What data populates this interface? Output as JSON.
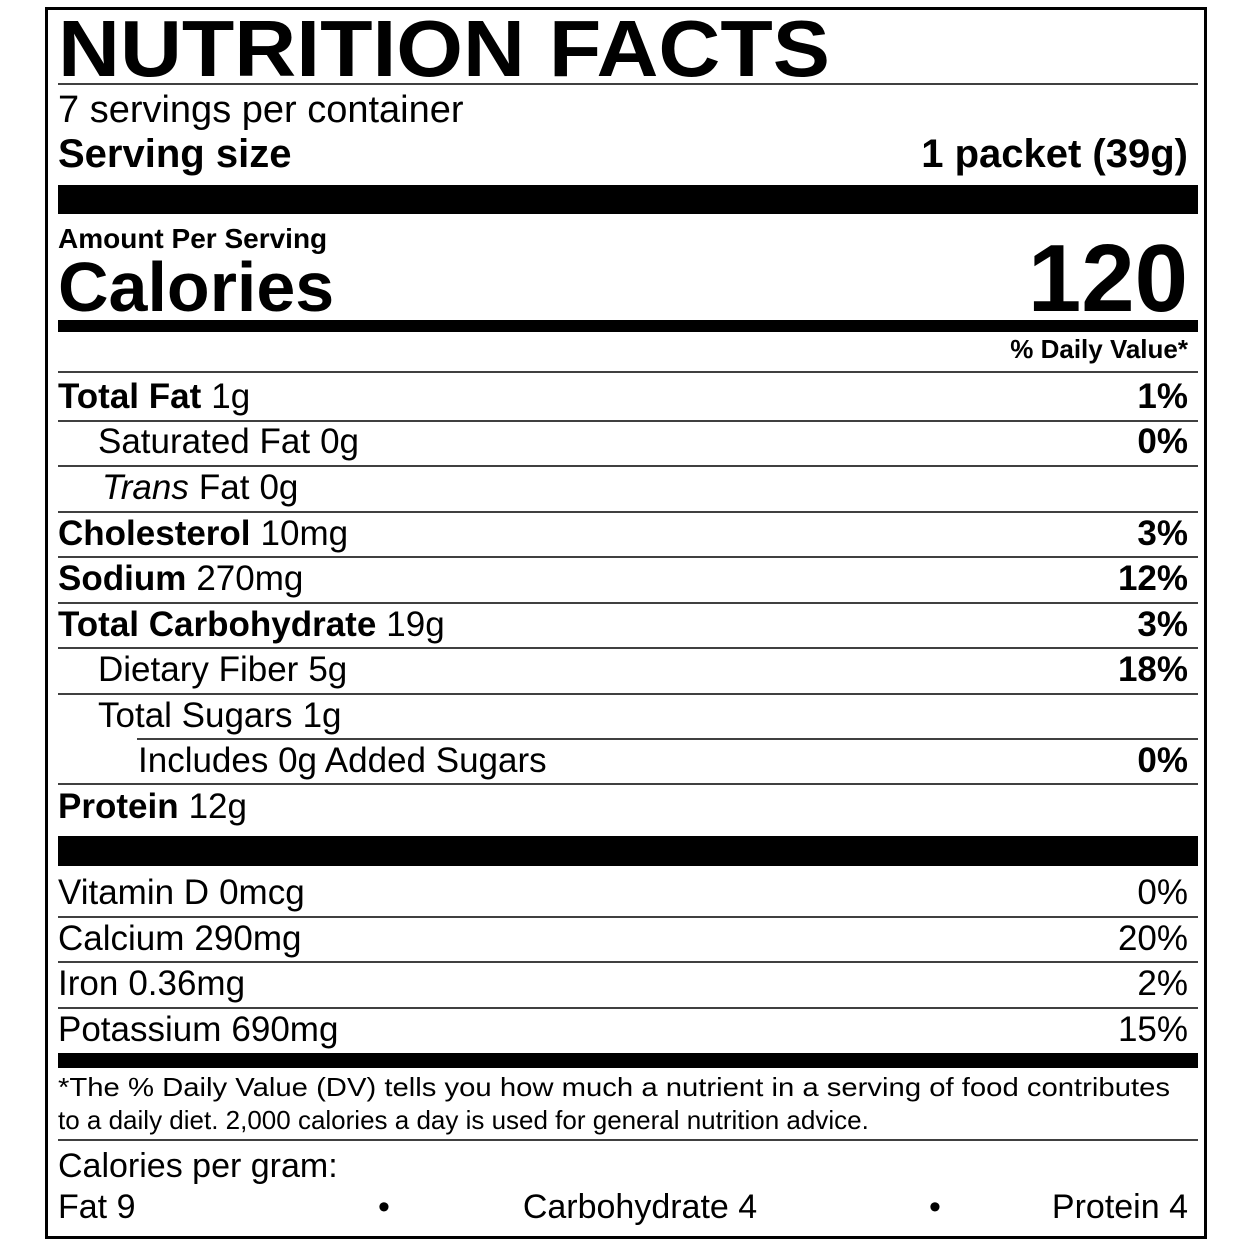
{
  "header": {
    "title": "NUTRITION FACTS",
    "servings": "7 servings per container",
    "serving_size_label": "Serving size",
    "serving_size": "1 packet (39g)"
  },
  "calories": {
    "heading": "Amount Per Serving",
    "label": "Calories",
    "value": "120"
  },
  "dv_heading": "% Daily Value*",
  "nutrients": [
    {
      "name": "Total Fat",
      "amount": "1g",
      "dv": "1%"
    },
    {
      "name": "Saturated Fat",
      "amount": "0g",
      "dv": "0%"
    },
    {
      "name_italic": "Trans",
      "name": "Fat",
      "amount": "0g"
    },
    {
      "name": "Cholesterol",
      "amount": "10mg",
      "dv": "3%"
    },
    {
      "name": "Sodium",
      "amount": "270mg",
      "dv": "12%"
    },
    {
      "name": "Total Carbohydrate",
      "amount": "19g",
      "dv": "3%"
    },
    {
      "name": "Dietary Fiber",
      "amount": "5g",
      "dv": "18%"
    },
    {
      "name": "Total Sugars",
      "amount": "1g"
    },
    {
      "name": "Includes 0g Added Sugars",
      "dv": "0%"
    },
    {
      "name": "Protein",
      "amount": "12g"
    }
  ],
  "vitamins": [
    {
      "name": "Vitamin D",
      "amount": "0mcg",
      "dv": "0%"
    },
    {
      "name": "Calcium",
      "amount": "290mg",
      "dv": "20%"
    },
    {
      "name": "Iron",
      "amount": "0.36mg",
      "dv": "2%"
    },
    {
      "name": "Potassium",
      "amount": "690mg",
      "dv": "15%"
    }
  ],
  "footnote": [
    "*The % Daily Value (DV) tells you how much a nutrient in a serving of food contributes",
    "to a daily diet. 2,000 calories a day is used for general nutrition advice."
  ],
  "calories_per_gram": {
    "heading": "Calories per gram:",
    "items": [
      "Fat 9",
      "Carbohydrate 4",
      "Protein 4"
    ],
    "separator": "•"
  }
}
